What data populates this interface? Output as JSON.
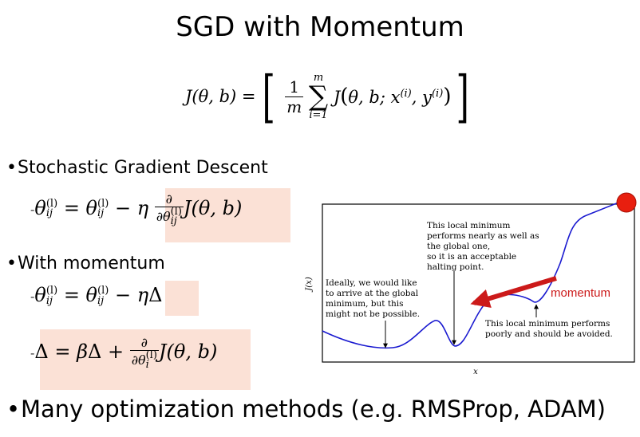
{
  "slide": {
    "title": "SGD with Momentum"
  },
  "bullets": [
    "Stochastic Gradient Descent",
    "With momentum",
    "Many optimization methods (e.g. RMSProp, ADAM)"
  ],
  "equations": {
    "cost": {
      "lhs": "J(θ, b) =",
      "frac_num": "1",
      "frac_den": "m",
      "sum_top": "m",
      "sum_bot": "i=1",
      "body": "J(θ, b; x(i), y(i))"
    },
    "sgd_update": "θij(l) = θij(l) − η ∂/∂θij(l) J(θ, b)",
    "momentum_update": "θij(l) = θij(l) − ηΔ",
    "delta_update": "Δ = βΔ + ∂/∂θi(l) J(θ, b)"
  },
  "figure": {
    "ylabel": "J(x)",
    "xlabel": "x",
    "momentum_label": "momentum",
    "annotations": {
      "global": [
        "Ideally, we would like",
        "to arrive at the global",
        "minimum, but this",
        "might not be possible."
      ],
      "local_good": [
        "This local minimum",
        "performs nearly as well as",
        "the global one,",
        "so it is an acceptable",
        "halting point."
      ],
      "local_bad": [
        "This local minimum performs",
        "poorly and should be avoided."
      ]
    },
    "colors": {
      "curve": "#1a1ad0",
      "arrow": "#cc1a1a",
      "ball": "#e81f0f",
      "momentum_text": "#cc1a1a"
    }
  }
}
